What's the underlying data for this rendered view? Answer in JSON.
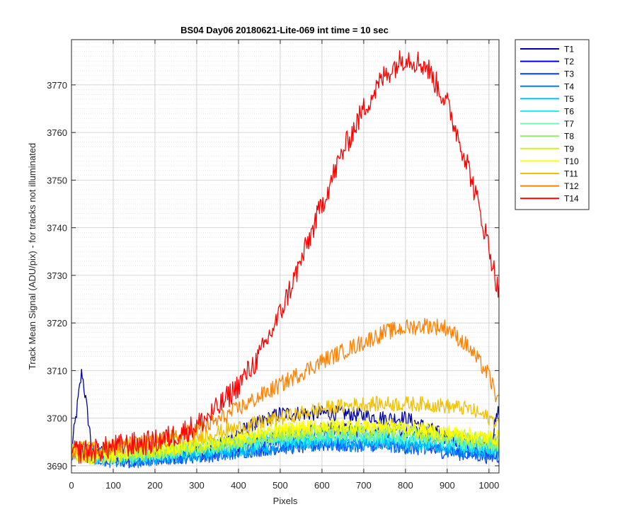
{
  "chart_data": {
    "type": "line",
    "title": "BS04 Day06 20180621-Lite-069 int time = 10 sec",
    "xlabel": "Pixels",
    "ylabel": "Track Mean Signal (ADU/pix) - for tracks not illuminated",
    "xlim": [
      0,
      1024
    ],
    "ylim": [
      3688.5,
      3779.5
    ],
    "xticks": [
      0,
      100,
      200,
      300,
      400,
      500,
      600,
      700,
      800,
      900,
      1000
    ],
    "yticks": [
      3690,
      3700,
      3710,
      3720,
      3730,
      3740,
      3750,
      3760,
      3770
    ],
    "grid": true,
    "minor_grid_y": true,
    "legend_position": "outside-top-right",
    "x": [
      0,
      25,
      50,
      100,
      150,
      200,
      250,
      300,
      350,
      400,
      450,
      500,
      550,
      600,
      650,
      700,
      750,
      800,
      850,
      900,
      950,
      1000,
      1024
    ],
    "series": [
      {
        "name": "T1",
        "color": "#0000a8",
        "values": [
          3693,
          3710,
          3693,
          3692,
          3691.5,
          3692,
          3692,
          3693,
          3694,
          3697,
          3699,
          3701,
          3701,
          3701,
          3701,
          3700.5,
          3700,
          3700,
          3698,
          3696,
          3694,
          3693,
          3702
        ]
      },
      {
        "name": "T2",
        "color": "#0000e0",
        "values": [
          3693,
          3694,
          3693,
          3692,
          3691.5,
          3692,
          3692,
          3692.5,
          3693,
          3694,
          3695,
          3696,
          3697,
          3697.5,
          3697.5,
          3697.5,
          3697.5,
          3697,
          3696.5,
          3696,
          3695,
          3694,
          3696
        ]
      },
      {
        "name": "T3",
        "color": "#0040ff",
        "values": [
          3693,
          3693,
          3692,
          3691,
          3691,
          3691.5,
          3692,
          3692,
          3692.5,
          3693,
          3693.5,
          3694,
          3694,
          3694.5,
          3694.5,
          3694.5,
          3694.5,
          3694,
          3693.5,
          3693,
          3692.5,
          3692,
          3692
        ]
      },
      {
        "name": "T4",
        "color": "#0080ff",
        "values": [
          3692.5,
          3692.5,
          3692,
          3691,
          3691,
          3691.5,
          3692,
          3692,
          3692.5,
          3693,
          3693.5,
          3694,
          3694.5,
          3694.5,
          3694.5,
          3694.5,
          3694.5,
          3694,
          3694,
          3693.5,
          3693,
          3692.5,
          3693
        ]
      },
      {
        "name": "T5",
        "color": "#00c0ff",
        "values": [
          3692.5,
          3692.5,
          3692,
          3691.5,
          3691.5,
          3692,
          3692,
          3692.5,
          3693,
          3693.5,
          3694,
          3694.5,
          3695,
          3695,
          3695,
          3695,
          3695,
          3694.5,
          3694.5,
          3694,
          3693.5,
          3693,
          3693
        ]
      },
      {
        "name": "T6",
        "color": "#20f0f0",
        "values": [
          3693,
          3693,
          3692.5,
          3692,
          3692,
          3692.5,
          3693,
          3693.5,
          3694,
          3694.5,
          3695,
          3695.5,
          3696,
          3696,
          3696,
          3696,
          3696,
          3695.5,
          3695.5,
          3695,
          3694.5,
          3694,
          3694
        ]
      },
      {
        "name": "T7",
        "color": "#70f8b0",
        "values": [
          3693,
          3693,
          3692.5,
          3692,
          3692,
          3692.5,
          3693,
          3693.5,
          3694,
          3694.5,
          3695,
          3696,
          3696.5,
          3696.5,
          3696.5,
          3696.5,
          3696.5,
          3696,
          3696,
          3695.5,
          3695,
          3694.5,
          3694.5
        ]
      },
      {
        "name": "T8",
        "color": "#90f060",
        "values": [
          3693,
          3693,
          3692.5,
          3692,
          3692.5,
          3693,
          3693.5,
          3694,
          3694.5,
          3695,
          3696,
          3696.5,
          3697,
          3697,
          3697,
          3697,
          3697,
          3697,
          3696.5,
          3696,
          3695.5,
          3695,
          3695
        ]
      },
      {
        "name": "T9",
        "color": "#d0f020",
        "values": [
          3693,
          3692,
          3691.5,
          3692,
          3692.5,
          3693,
          3693.5,
          3694,
          3695,
          3695.5,
          3696.5,
          3697,
          3697.5,
          3698,
          3698,
          3698,
          3698,
          3697.5,
          3697,
          3696.5,
          3696,
          3695.5,
          3695
        ]
      },
      {
        "name": "T10",
        "color": "#ffff00",
        "values": [
          3693,
          3692,
          3692,
          3692.5,
          3693,
          3693.5,
          3694,
          3694.5,
          3695.5,
          3696,
          3697,
          3697.5,
          3698,
          3698.5,
          3698.5,
          3698.5,
          3698.5,
          3698,
          3697.5,
          3697,
          3696.5,
          3696,
          3696
        ]
      },
      {
        "name": "T11",
        "color": "#f0c000",
        "values": [
          3694,
          3694,
          3693.5,
          3694,
          3694.5,
          3695,
          3695.5,
          3696,
          3697,
          3698,
          3699,
          3700,
          3701,
          3702,
          3702.5,
          3703,
          3703,
          3703,
          3703,
          3702.5,
          3702,
          3700,
          3699
        ]
      },
      {
        "name": "T12",
        "color": "#ff8000",
        "values": [
          3693,
          3693.5,
          3693.5,
          3694,
          3694.5,
          3695,
          3696,
          3697.5,
          3699.5,
          3702,
          3704.5,
          3707,
          3709.5,
          3712,
          3714,
          3716,
          3718,
          3719,
          3719.5,
          3719,
          3715,
          3709,
          3703
        ]
      },
      {
        "name": "T14",
        "color": "#ff0000",
        "values": [
          3693,
          3693,
          3693,
          3694,
          3694.5,
          3695,
          3696.5,
          3698.5,
          3702,
          3707,
          3713,
          3722,
          3733,
          3745,
          3756,
          3765,
          3772,
          3776,
          3774,
          3766,
          3753,
          3736,
          3726
        ]
      }
    ]
  }
}
